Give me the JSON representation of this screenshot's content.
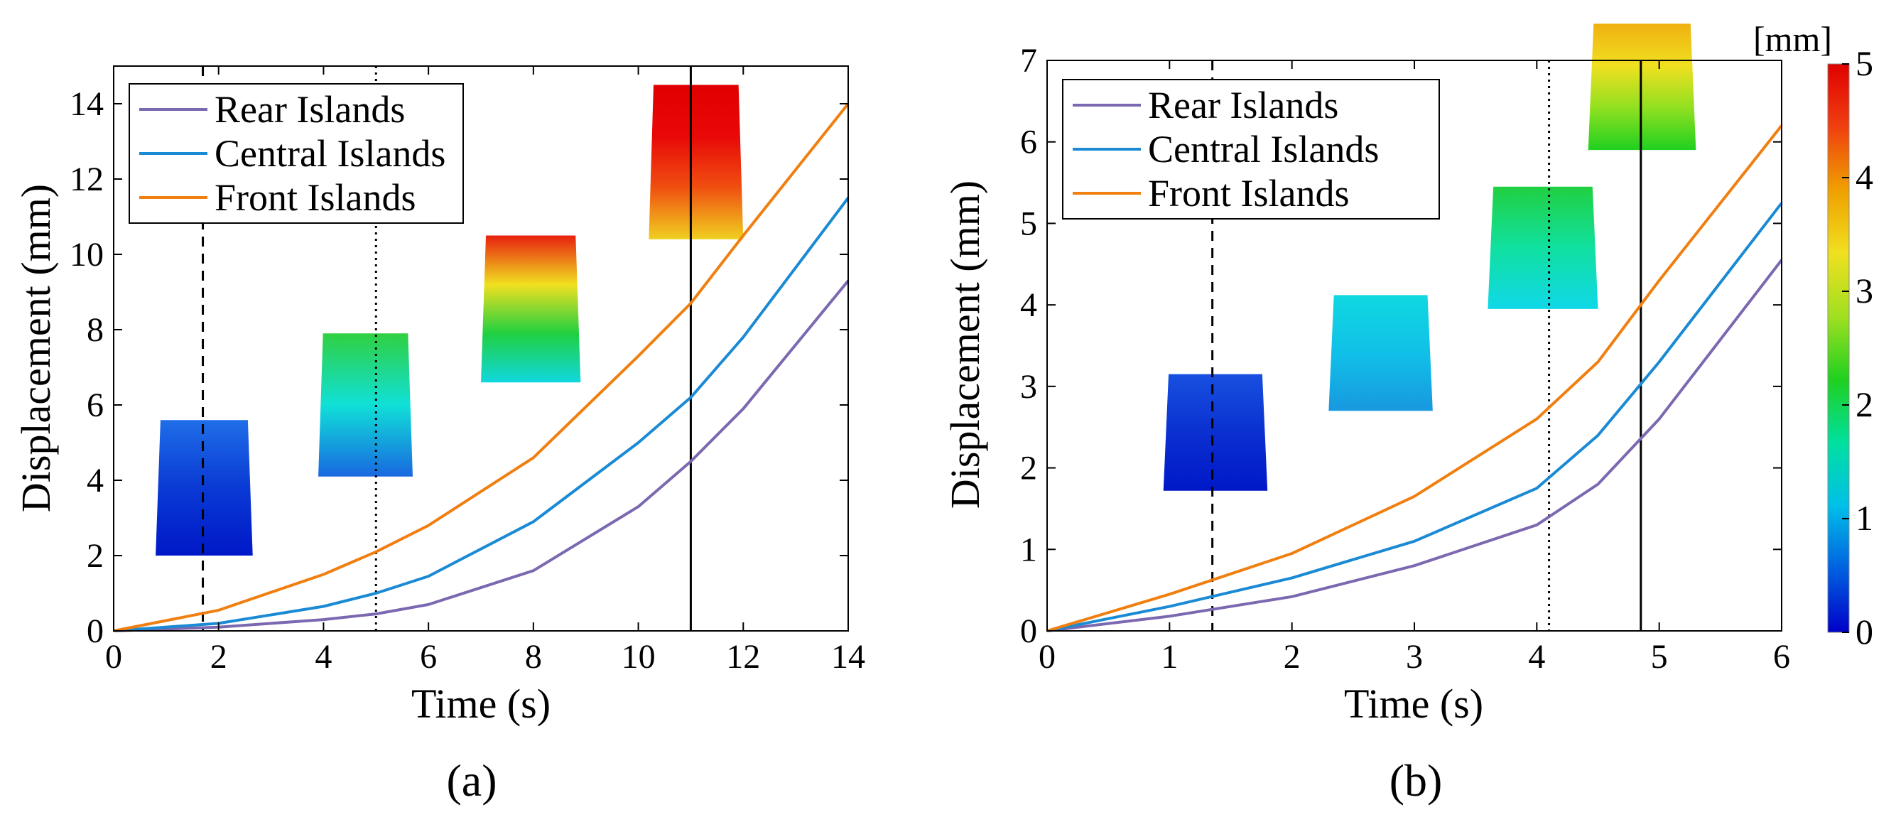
{
  "figure": {
    "colorbar": {
      "unit": "[mm]",
      "ticks": [
        "5",
        "4",
        "3",
        "2",
        "1",
        "0"
      ],
      "colors": [
        "#0000c8",
        "#0060e0",
        "#00bfe8",
        "#00e0a0",
        "#20d020",
        "#a0e020",
        "#f0e020",
        "#f0a000",
        "#f04010",
        "#e00000"
      ]
    }
  },
  "chart_data": [
    {
      "type": "line",
      "panel_label": "(a)",
      "xlabel": "Time (s)",
      "ylabel": "Displacement (mm)",
      "xlim": [
        0,
        14
      ],
      "ylim": [
        0,
        15
      ],
      "xticks": [
        "0",
        "2",
        "4",
        "6",
        "8",
        "10",
        "12",
        "14"
      ],
      "yticks": [
        "0",
        "2",
        "4",
        "6",
        "8",
        "10",
        "12",
        "14"
      ],
      "legend_position": "top-left",
      "series": [
        {
          "name": "Rear Islands",
          "color": "#7b68b0",
          "x": [
            0,
            2,
            4,
            5,
            6,
            8,
            10,
            11,
            12,
            14
          ],
          "y": [
            0,
            0.1,
            0.3,
            0.45,
            0.7,
            1.6,
            3.3,
            4.5,
            5.9,
            9.3
          ]
        },
        {
          "name": "Central Islands",
          "color": "#1a8ad4",
          "x": [
            0,
            2,
            4,
            5,
            6,
            8,
            10,
            11,
            12,
            14
          ],
          "y": [
            0,
            0.2,
            0.65,
            1.0,
            1.45,
            2.9,
            5.0,
            6.2,
            7.8,
            11.5
          ]
        },
        {
          "name": "Front Islands",
          "color": "#f07f10",
          "x": [
            0,
            2,
            4,
            5,
            6,
            8,
            10,
            11,
            12,
            14
          ],
          "y": [
            0,
            0.55,
            1.5,
            2.1,
            2.8,
            4.6,
            7.3,
            8.7,
            10.5,
            14.0
          ]
        }
      ],
      "vlines": [
        {
          "x": 1.7,
          "style": "dashed"
        },
        {
          "x": 5.0,
          "style": "dotted"
        },
        {
          "x": 11.0,
          "style": "solid"
        }
      ],
      "insets": [
        {
          "x0": 0.8,
          "x1": 2.65,
          "y0": 2.0,
          "y1": 5.6,
          "colors": [
            "#1f6ee8",
            "#0a3ad4",
            "#0018c8"
          ]
        },
        {
          "x0": 3.9,
          "x1": 5.7,
          "y0": 4.1,
          "y1": 7.9,
          "colors": [
            "#30d040",
            "#10e0d8",
            "#1868e0"
          ]
        },
        {
          "x0": 7.0,
          "x1": 8.9,
          "y0": 6.6,
          "y1": 10.5,
          "colors": [
            "#e82010",
            "#f0e020",
            "#20d040",
            "#10d8e0"
          ]
        },
        {
          "x0": 10.2,
          "x1": 12.0,
          "y0": 10.4,
          "y1": 14.5,
          "colors": [
            "#e00000",
            "#e80808",
            "#f05010",
            "#f0d020"
          ]
        }
      ]
    },
    {
      "type": "line",
      "panel_label": "(b)",
      "xlabel": "Time (s)",
      "ylabel": "Displacement (mm)",
      "xlim": [
        0,
        6
      ],
      "ylim": [
        0,
        7
      ],
      "xticks": [
        "0",
        "1",
        "2",
        "3",
        "4",
        "5",
        "6"
      ],
      "yticks": [
        "0",
        "1",
        "2",
        "3",
        "4",
        "5",
        "6",
        "7"
      ],
      "legend_position": "top-left",
      "series": [
        {
          "name": "Rear Islands",
          "color": "#7b68b0",
          "x": [
            0,
            1,
            2,
            3,
            4,
            4.5,
            5,
            6
          ],
          "y": [
            0,
            0.18,
            0.42,
            0.8,
            1.3,
            1.8,
            2.6,
            4.55
          ]
        },
        {
          "name": "Central Islands",
          "color": "#1a8ad4",
          "x": [
            0,
            1,
            2,
            3,
            4,
            4.5,
            5,
            6
          ],
          "y": [
            0,
            0.3,
            0.65,
            1.1,
            1.75,
            2.4,
            3.3,
            5.25
          ]
        },
        {
          "name": "Front Islands",
          "color": "#f07f10",
          "x": [
            0,
            1,
            2,
            3,
            4,
            4.5,
            5,
            6
          ],
          "y": [
            0,
            0.45,
            0.95,
            1.65,
            2.6,
            3.3,
            4.3,
            6.2
          ]
        }
      ],
      "vlines": [
        {
          "x": 1.35,
          "style": "dashed"
        },
        {
          "x": 4.1,
          "style": "dotted"
        },
        {
          "x": 4.85,
          "style": "solid"
        }
      ],
      "insets": [
        {
          "x0": 0.95,
          "x1": 1.8,
          "y0": 1.72,
          "y1": 3.15,
          "colors": [
            "#1850e0",
            "#0a30d0",
            "#0018c8"
          ]
        },
        {
          "x0": 2.3,
          "x1": 3.15,
          "y0": 2.7,
          "y1": 4.12,
          "colors": [
            "#10d8e0",
            "#10c0e8",
            "#1898e0"
          ]
        },
        {
          "x0": 3.6,
          "x1": 4.5,
          "y0": 3.95,
          "y1": 5.45,
          "colors": [
            "#20d040",
            "#10e0a0",
            "#10d8e8"
          ]
        },
        {
          "x0": 4.42,
          "x1": 5.3,
          "y0": 5.9,
          "y1": 7.45,
          "colors": [
            "#f0b010",
            "#f0e020",
            "#90e020",
            "#20d020"
          ]
        }
      ]
    }
  ]
}
